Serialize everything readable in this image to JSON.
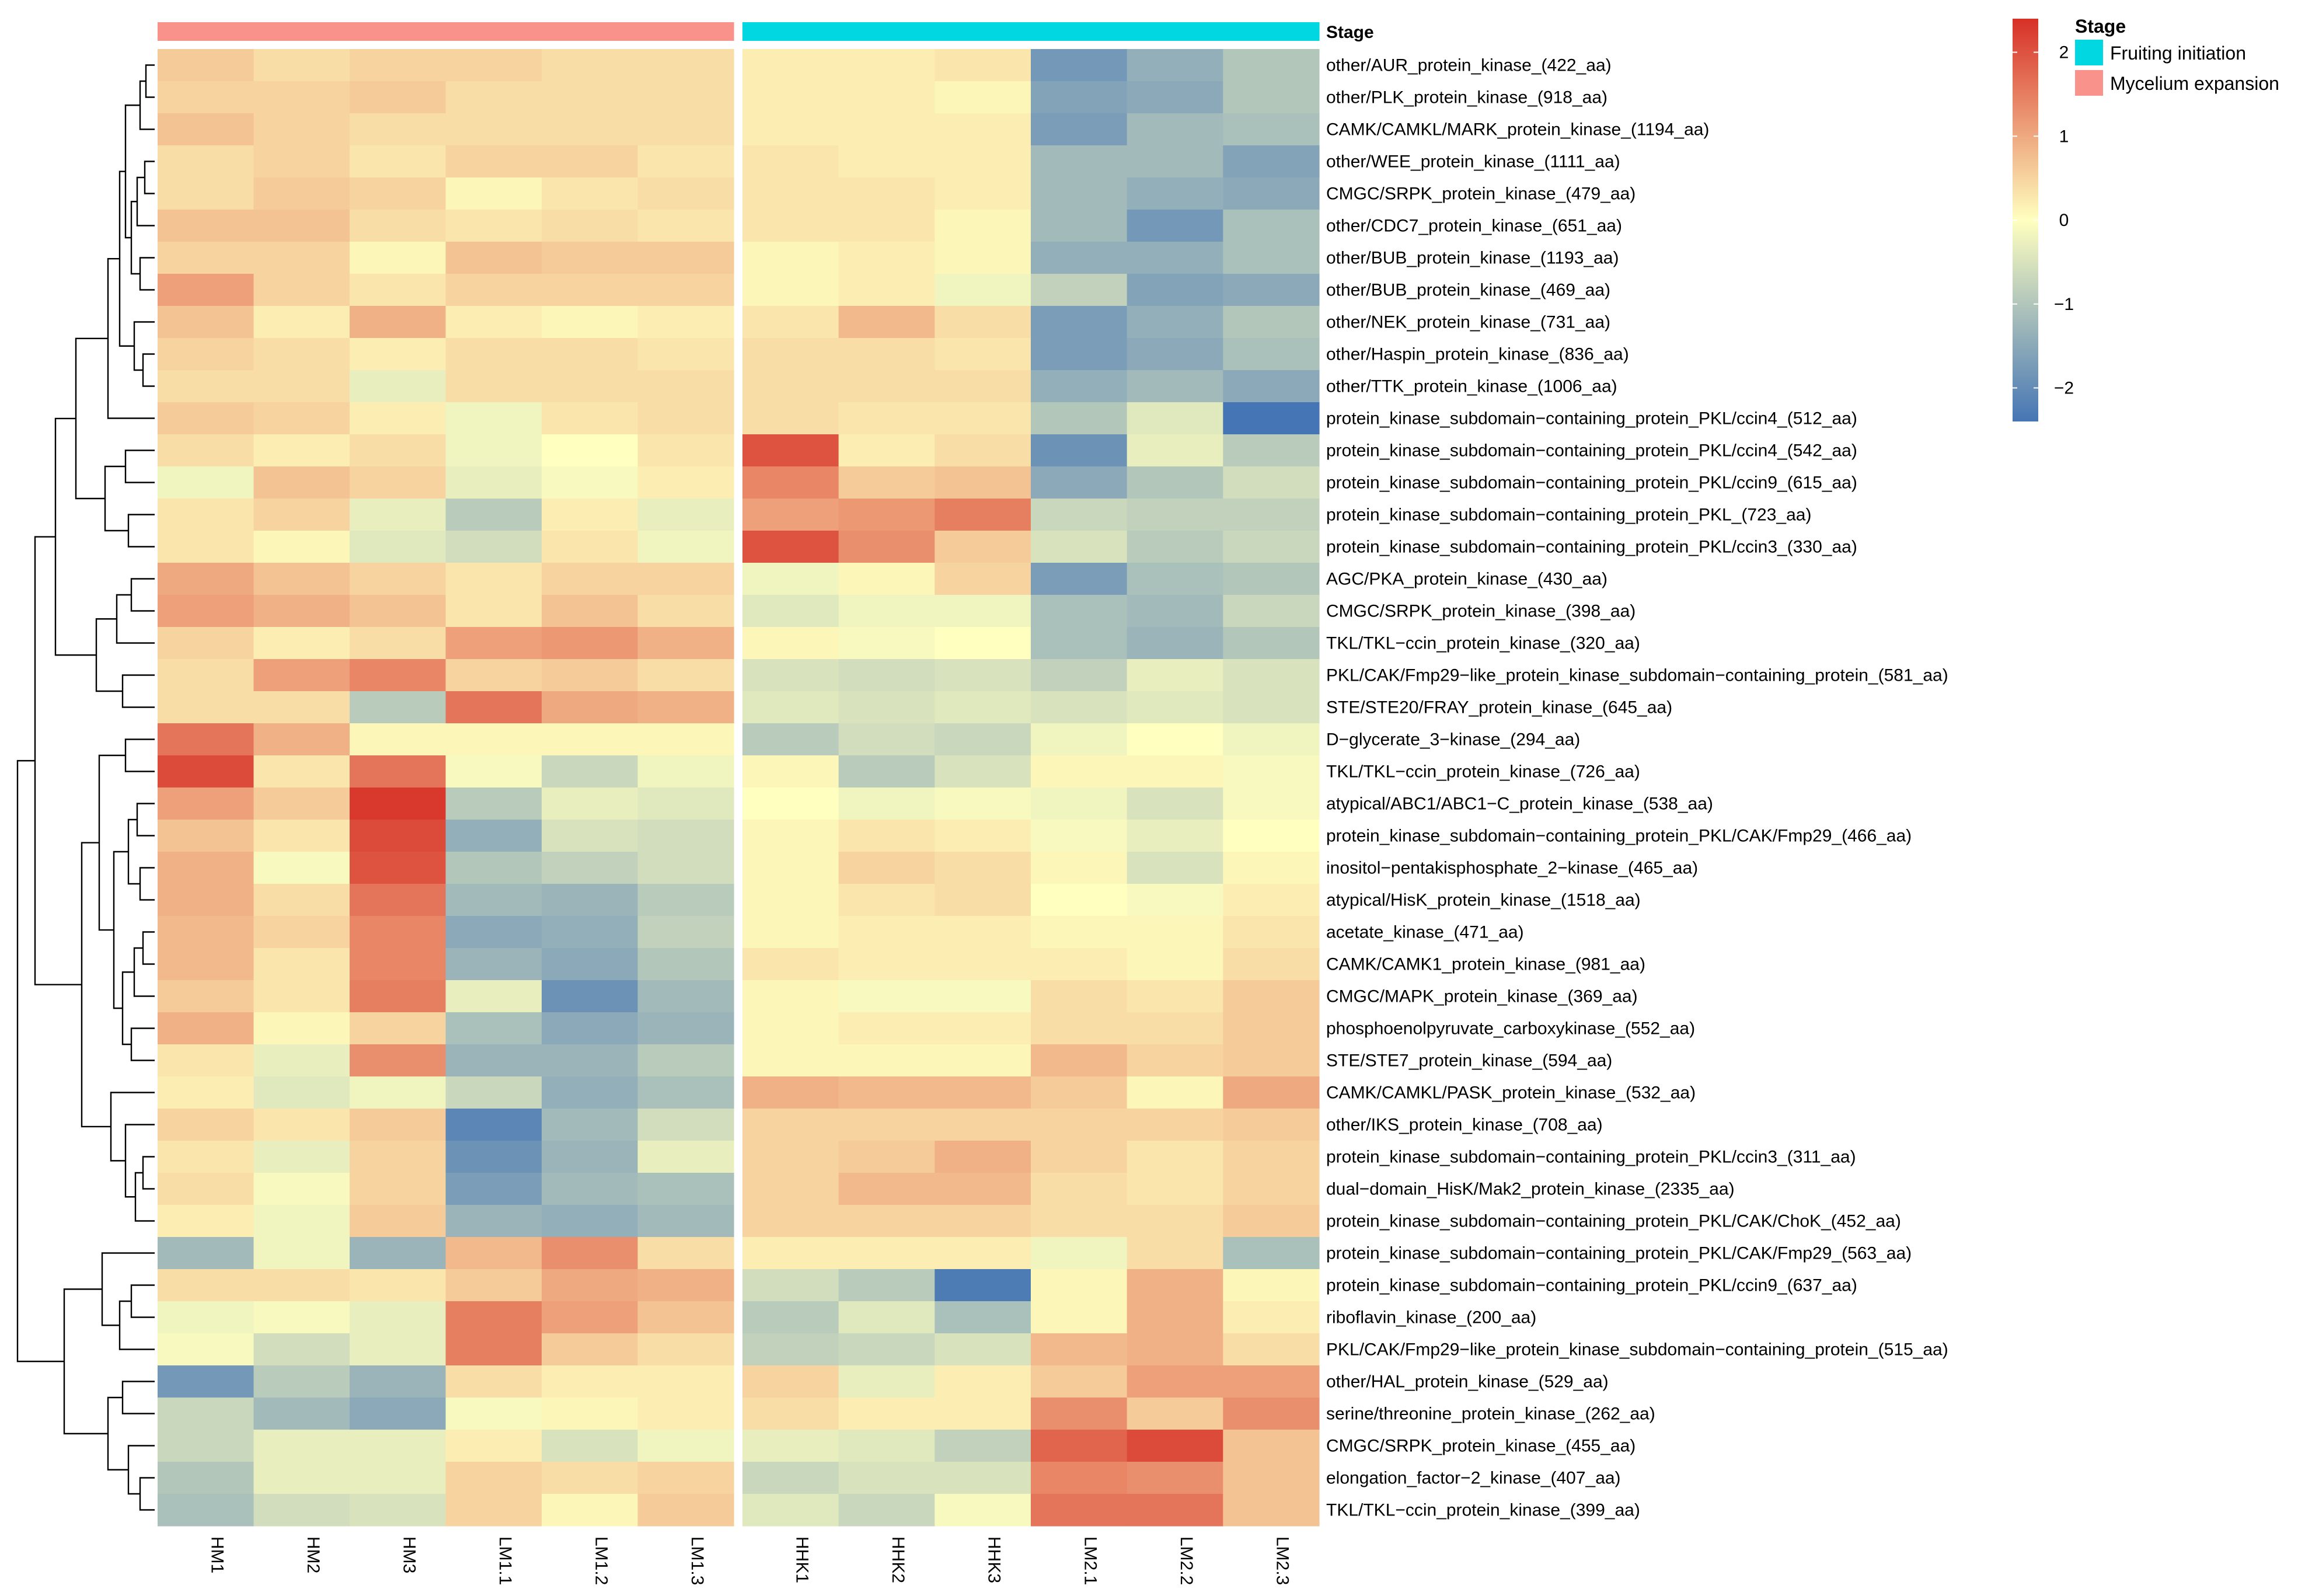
{
  "chart_data": {
    "type": "heatmap",
    "title": "",
    "color_scale": {
      "low": "#4575b4",
      "mid": "#ffffbf",
      "high": "#d73027",
      "range": [
        -2.4,
        2.4
      ],
      "ticks": [
        2,
        1,
        0,
        -1,
        -2
      ],
      "tick_labels": [
        "2",
        "1",
        "0",
        "−1",
        "−2"
      ]
    },
    "columns": [
      "HM1",
      "HM2",
      "HM3",
      "LM1.1",
      "LM1.2",
      "LM1.3",
      "HHK1",
      "HHK2",
      "HHK3",
      "LM2.1",
      "LM2.2",
      "LM2.3"
    ],
    "annotation": {
      "title": "Stage",
      "legend_title": "Stage",
      "levels": [
        {
          "name": "Fruiting initiation",
          "color": "#00d7e0"
        },
        {
          "name": "Mycelium expansion",
          "color": "#f8928a"
        }
      ],
      "column_levels": [
        1,
        1,
        1,
        1,
        1,
        1,
        0,
        0,
        0,
        0,
        0,
        0
      ]
    },
    "rows": [
      "other/AUR_protein_kinase_(422_aa)",
      "other/PLK_protein_kinase_(918_aa)",
      "CAMK/CAMKL/MARK_protein_kinase_(1194_aa)",
      "other/WEE_protein_kinase_(1111_aa)",
      "CMGC/SRPK_protein_kinase_(479_aa)",
      "other/CDC7_protein_kinase_(651_aa)",
      "other/BUB_protein_kinase_(1193_aa)",
      "other/BUB_protein_kinase_(469_aa)",
      "other/NEK_protein_kinase_(731_aa)",
      "other/Haspin_protein_kinase_(836_aa)",
      "other/TTK_protein_kinase_(1006_aa)",
      "protein_kinase_subdomain−containing_protein_PKL/ccin4_(512_aa)",
      "protein_kinase_subdomain−containing_protein_PKL/ccin4_(542_aa)",
      "protein_kinase_subdomain−containing_protein_PKL/ccin9_(615_aa)",
      "protein_kinase_subdomain−containing_protein_PKL_(723_aa)",
      "protein_kinase_subdomain−containing_protein_PKL/ccin3_(330_aa)",
      "AGC/PKA_protein_kinase_(430_aa)",
      "CMGC/SRPK_protein_kinase_(398_aa)",
      "TKL/TKL−ccin_protein_kinase_(320_aa)",
      "PKL/CAK/Fmp29−like_protein_kinase_subdomain−containing_protein_(581_aa)",
      "STE/STE20/FRAY_protein_kinase_(645_aa)",
      "D−glycerate_3−kinase_(294_aa)",
      "TKL/TKL−ccin_protein_kinase_(726_aa)",
      "atypical/ABC1/ABC1−C_protein_kinase_(538_aa)",
      "protein_kinase_subdomain−containing_protein_PKL/CAK/Fmp29_(466_aa)",
      "inositol−pentakisphosphate_2−kinase_(465_aa)",
      "atypical/HisK_protein_kinase_(1518_aa)",
      "acetate_kinase_(471_aa)",
      "CAMK/CAMK1_protein_kinase_(981_aa)",
      "CMGC/MAPK_protein_kinase_(369_aa)",
      "phosphoenolpyruvate_carboxykinase_(552_aa)",
      "STE/STE7_protein_kinase_(594_aa)",
      "CAMK/CAMKL/PASK_protein_kinase_(532_aa)",
      "other/IKS_protein_kinase_(708_aa)",
      "protein_kinase_subdomain−containing_protein_PKL/ccin3_(311_aa)",
      "dual−domain_HisK/Mak2_protein_kinase_(2335_aa)",
      "protein_kinase_subdomain−containing_protein_PKL/CAK/ChoK_(452_aa)",
      "protein_kinase_subdomain−containing_protein_PKL/CAK/Fmp29_(563_aa)",
      "protein_kinase_subdomain−containing_protein_PKL/ccin9_(637_aa)",
      "riboflavin_kinase_(200_aa)",
      "PKL/CAK/Fmp29−like_protein_kinase_subdomain−containing_protein_(515_aa)",
      "other/HAL_protein_kinase_(529_aa)",
      "serine/threonine_protein_kinase_(262_aa)",
      "CMGC/SRPK_protein_kinase_(455_aa)",
      "elongation_factor−2_kinase_(407_aa)",
      "TKL/TKL−ccin_protein_kinase_(399_aa)"
    ],
    "values": [
      [
        0.6,
        0.4,
        0.5,
        0.5,
        0.4,
        0.4,
        0.2,
        0.2,
        0.3,
        -1.8,
        -1.4,
        -1.0
      ],
      [
        0.5,
        0.5,
        0.6,
        0.4,
        0.4,
        0.4,
        0.2,
        0.2,
        0.1,
        -1.6,
        -1.5,
        -1.0
      ],
      [
        0.7,
        0.5,
        0.4,
        0.4,
        0.4,
        0.4,
        0.2,
        0.2,
        0.2,
        -1.7,
        -1.2,
        -1.1
      ],
      [
        0.4,
        0.5,
        0.3,
        0.5,
        0.5,
        0.3,
        0.3,
        0.2,
        0.2,
        -1.2,
        -1.2,
        -1.6
      ],
      [
        0.4,
        0.6,
        0.5,
        0.1,
        0.3,
        0.4,
        0.3,
        0.3,
        0.2,
        -1.2,
        -1.4,
        -1.5
      ],
      [
        0.7,
        0.7,
        0.4,
        0.3,
        0.4,
        0.3,
        0.3,
        0.3,
        0.1,
        -1.2,
        -1.8,
        -1.1
      ],
      [
        0.5,
        0.5,
        0.1,
        0.7,
        0.6,
        0.6,
        0.1,
        0.2,
        0.1,
        -1.4,
        -1.4,
        -1.1
      ],
      [
        1.1,
        0.5,
        0.3,
        0.5,
        0.5,
        0.5,
        0.1,
        0.2,
        -0.2,
        -0.8,
        -1.6,
        -1.5
      ],
      [
        0.7,
        0.2,
        0.9,
        0.2,
        0.1,
        0.2,
        0.3,
        0.8,
        0.4,
        -1.7,
        -1.4,
        -1.0
      ],
      [
        0.5,
        0.4,
        0.2,
        0.4,
        0.4,
        0.3,
        0.4,
        0.4,
        0.3,
        -1.7,
        -1.5,
        -1.1
      ],
      [
        0.4,
        0.4,
        -0.3,
        0.4,
        0.4,
        0.4,
        0.4,
        0.4,
        0.4,
        -1.4,
        -1.2,
        -1.5
      ],
      [
        0.6,
        0.5,
        0.2,
        -0.2,
        0.3,
        0.4,
        0.4,
        0.3,
        0.3,
        -1.0,
        -0.4,
        -2.4
      ],
      [
        0.4,
        0.2,
        0.4,
        -0.2,
        0.0,
        0.3,
        2.0,
        0.2,
        0.4,
        -1.9,
        -0.3,
        -0.9
      ],
      [
        -0.2,
        0.7,
        0.5,
        -0.3,
        -0.1,
        0.2,
        1.4,
        0.6,
        0.7,
        -1.5,
        -1.0,
        -0.6
      ],
      [
        0.3,
        0.5,
        -0.3,
        -0.9,
        0.2,
        -0.3,
        1.1,
        1.2,
        1.5,
        -0.7,
        -0.8,
        -0.8
      ],
      [
        0.3,
        0.1,
        -0.4,
        -0.6,
        0.3,
        -0.2,
        2.0,
        1.3,
        0.6,
        -0.5,
        -0.9,
        -0.7
      ],
      [
        1.0,
        0.7,
        0.5,
        0.3,
        0.5,
        0.5,
        -0.2,
        0.1,
        0.5,
        -1.7,
        -1.1,
        -1.0
      ],
      [
        1.1,
        0.9,
        0.7,
        0.3,
        0.7,
        0.4,
        -0.4,
        -0.2,
        -0.2,
        -1.1,
        -1.2,
        -0.7
      ],
      [
        0.5,
        0.2,
        0.4,
        1.1,
        1.2,
        0.9,
        0.1,
        -0.1,
        0.0,
        -1.1,
        -1.3,
        -1.0
      ],
      [
        0.4,
        1.1,
        1.4,
        0.5,
        0.6,
        0.4,
        -0.5,
        -0.6,
        -0.5,
        -0.8,
        -0.3,
        -0.5
      ],
      [
        0.4,
        0.4,
        -0.9,
        1.6,
        1.0,
        0.9,
        -0.4,
        -0.5,
        -0.4,
        -0.5,
        -0.4,
        -0.5
      ],
      [
        1.6,
        0.9,
        0.1,
        0.1,
        0.1,
        0.1,
        -0.9,
        -0.6,
        -0.7,
        -0.2,
        0.0,
        -0.2
      ],
      [
        2.1,
        0.3,
        1.6,
        -0.1,
        -0.7,
        -0.2,
        0.1,
        -0.9,
        -0.5,
        0.1,
        0.1,
        -0.1
      ],
      [
        1.1,
        0.6,
        2.3,
        -0.9,
        -0.3,
        -0.4,
        0.0,
        -0.2,
        -0.1,
        -0.2,
        -0.5,
        -0.1
      ],
      [
        0.7,
        0.3,
        2.1,
        -1.4,
        -0.5,
        -0.6,
        0.1,
        0.3,
        0.2,
        -0.1,
        -0.3,
        0.0
      ],
      [
        0.9,
        -0.1,
        2.0,
        -1.0,
        -0.8,
        -0.6,
        0.1,
        0.5,
        0.4,
        0.1,
        -0.5,
        0.1
      ],
      [
        0.9,
        0.4,
        1.6,
        -1.2,
        -1.3,
        -0.9,
        0.1,
        0.3,
        0.4,
        0.0,
        -0.1,
        0.2
      ],
      [
        0.8,
        0.5,
        1.4,
        -1.5,
        -1.4,
        -0.8,
        0.1,
        0.2,
        0.2,
        0.1,
        0.1,
        0.3
      ],
      [
        0.8,
        0.3,
        1.4,
        -1.3,
        -1.5,
        -1.0,
        0.3,
        0.2,
        0.2,
        0.2,
        0.1,
        0.4
      ],
      [
        0.6,
        0.3,
        1.5,
        -0.3,
        -1.9,
        -1.2,
        0.1,
        -0.1,
        -0.1,
        0.4,
        0.3,
        0.6
      ],
      [
        0.9,
        0.1,
        0.5,
        -1.1,
        -1.5,
        -1.3,
        0.1,
        0.2,
        0.2,
        0.4,
        0.4,
        0.6
      ],
      [
        0.3,
        -0.3,
        1.3,
        -1.3,
        -1.3,
        -0.9,
        0.1,
        0.1,
        0.1,
        0.8,
        0.5,
        0.6
      ],
      [
        0.2,
        -0.4,
        -0.2,
        -0.7,
        -1.4,
        -1.1,
        0.9,
        0.8,
        0.8,
        0.6,
        0.1,
        1.0
      ],
      [
        0.5,
        0.3,
        0.6,
        -2.1,
        -1.2,
        -0.6,
        0.5,
        0.5,
        0.5,
        0.5,
        0.5,
        0.6
      ],
      [
        0.3,
        -0.3,
        0.5,
        -1.9,
        -1.3,
        -0.3,
        0.5,
        0.6,
        0.9,
        0.5,
        0.3,
        0.5
      ],
      [
        0.4,
        -0.1,
        0.5,
        -1.7,
        -1.2,
        -1.1,
        0.5,
        0.8,
        0.8,
        0.4,
        0.3,
        0.5
      ],
      [
        0.2,
        -0.2,
        0.6,
        -1.3,
        -1.4,
        -1.2,
        0.5,
        0.5,
        0.5,
        0.4,
        0.4,
        0.6
      ],
      [
        -1.2,
        -0.2,
        -1.3,
        0.8,
        1.3,
        0.4,
        0.2,
        0.2,
        0.2,
        -0.2,
        0.4,
        -1.1
      ],
      [
        0.4,
        0.4,
        0.3,
        0.6,
        1.0,
        0.9,
        -0.6,
        -0.9,
        -2.3,
        0.1,
        0.9,
        0.1
      ],
      [
        -0.2,
        -0.1,
        -0.3,
        1.5,
        1.1,
        0.7,
        -0.9,
        -0.4,
        -1.1,
        0.1,
        0.9,
        0.2
      ],
      [
        -0.1,
        -0.6,
        -0.3,
        1.5,
        0.6,
        0.4,
        -0.8,
        -0.7,
        -0.5,
        0.8,
        0.9,
        0.4
      ],
      [
        -1.8,
        -0.9,
        -1.3,
        0.4,
        0.2,
        0.2,
        0.5,
        -0.3,
        0.2,
        0.6,
        1.1,
        1.1
      ],
      [
        -0.7,
        -1.2,
        -1.5,
        -0.1,
        0.1,
        0.2,
        0.4,
        0.2,
        0.2,
        1.3,
        0.6,
        1.3
      ],
      [
        -0.7,
        -0.3,
        -0.3,
        0.2,
        -0.5,
        -0.2,
        -0.3,
        -0.4,
        -0.8,
        1.8,
        2.1,
        0.7
      ],
      [
        -1.0,
        -0.3,
        -0.3,
        0.5,
        0.4,
        0.5,
        -0.7,
        -0.5,
        -0.5,
        1.4,
        1.3,
        0.7
      ],
      [
        -1.1,
        -0.6,
        -0.5,
        0.5,
        0.1,
        0.6,
        -0.4,
        -0.7,
        -0.1,
        1.6,
        1.6,
        0.7
      ]
    ],
    "dendrogram": {
      "type": "row",
      "leaf_order": "top-to-bottom"
    }
  }
}
